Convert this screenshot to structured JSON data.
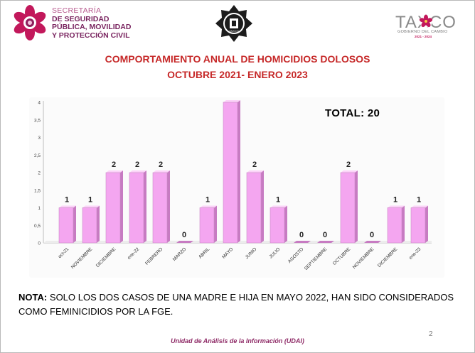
{
  "header": {
    "agency_lines": [
      "SECRETARÍA",
      "DE SEGURIDAD",
      "PÚBLICA, MOVILIDAD",
      "Y PROTECCIÓN CIVIL"
    ],
    "badge_label": "TAXCO",
    "taxco_logo_text": "TAXCO",
    "taxco_subtitle": "GOBIERNO DEL CAMBIO",
    "taxco_years": "2021 - 2024"
  },
  "title_line1": "COMPORTAMIENTO ANUAL DE HOMICIDIOS DOLOSOS",
  "title_line2": "OCTUBRE 2021- ENERO 2023",
  "total_label": "TOTAL: 20",
  "note": {
    "prefix": "NOTA:",
    "text": " SOLO LOS DOS CASOS DE UNA MADRE E HIJA EN MAYO 2022, HAN SIDO CONSIDERADOS COMO FEMINICIDIOS POR LA FGE."
  },
  "footer": "Unidad de Análisis de la Información (UDAI)",
  "page_number": "2",
  "colors": {
    "bar_face": "#f4a6f0",
    "bar_side": "#c77bc2",
    "bar_top": "#fbd3f8",
    "title_red": "#c62828",
    "agency_purple": "#7a2560"
  },
  "chart_data": {
    "type": "bar",
    "categories": [
      "oct-21",
      "NOVIEMBRE",
      "DICIEMBRE",
      "ene-22",
      "FEBRERO",
      "MARZO",
      "ABRIL",
      "MAYO",
      "JUNIO",
      "JULIO",
      "AGOSTO",
      "SEPTIEMBRE",
      "OCTUBRE",
      "NOVIEMBRE",
      "DICIEMBRE",
      "ene-23"
    ],
    "values": [
      1,
      1,
      2,
      2,
      2,
      0,
      1,
      4,
      2,
      1,
      0,
      0,
      2,
      0,
      1,
      1
    ],
    "yticks": [
      "0",
      "0,5",
      "1",
      "1,5",
      "2",
      "2,5",
      "3",
      "3,5",
      "4"
    ],
    "ylim": [
      0,
      4
    ],
    "title": "",
    "xlabel": "",
    "ylabel": "",
    "grid": false,
    "legend": "none",
    "style": "3d-column"
  }
}
